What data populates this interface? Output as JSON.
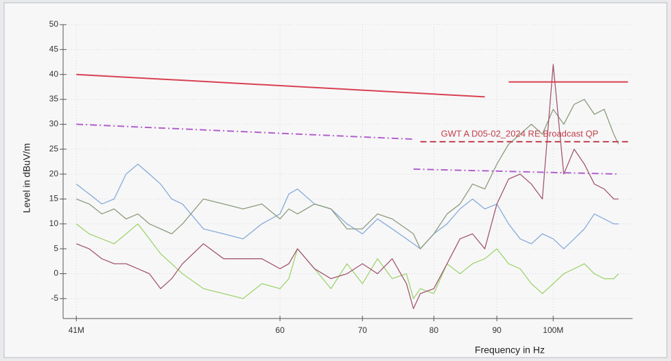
{
  "chart_data": {
    "type": "line",
    "x_label": "Frequency in Hz",
    "y_label": "Level in dBuV/m",
    "log_x": true,
    "grid": true,
    "xlim": [
      40000000,
      116000000
    ],
    "ylim": [
      -9,
      50
    ],
    "yticks": [
      -5,
      0,
      5,
      10,
      15,
      20,
      25,
      30,
      35,
      40,
      45,
      50
    ],
    "xticks": [
      {
        "value": 41000000,
        "label": "41M"
      },
      {
        "value": 60000000,
        "label": "60"
      },
      {
        "value": 70000000,
        "label": "70"
      },
      {
        "value": 80000000,
        "label": "80"
      },
      {
        "value": 90000000,
        "label": "90"
      },
      {
        "value": 100000000,
        "label": "100M"
      }
    ],
    "x": [
      41000000,
      42000000,
      43000000,
      44000000,
      45000000,
      46000000,
      47000000,
      48000000,
      49000000,
      50000000,
      52000000,
      54000000,
      56000000,
      58000000,
      60000000,
      61000000,
      62000000,
      64000000,
      66000000,
      68000000,
      70000000,
      72000000,
      74000000,
      76000000,
      77000000,
      78000000,
      80000000,
      82000000,
      84000000,
      86000000,
      88000000,
      90000000,
      92000000,
      94000000,
      96000000,
      98000000,
      100000000,
      102000000,
      104000000,
      106000000,
      108000000,
      110000000,
      112000000,
      113000000
    ],
    "series": [
      {
        "color": "#86aad8",
        "values": [
          18,
          16,
          14,
          15,
          20,
          22,
          20,
          18,
          15,
          14,
          9,
          8,
          7,
          10,
          12,
          16,
          17,
          14,
          13,
          10,
          8,
          11,
          9,
          7,
          6,
          5,
          8,
          10,
          13,
          15,
          13,
          14,
          10,
          7,
          6,
          8,
          7,
          5,
          7,
          9,
          12,
          11,
          10,
          10
        ]
      },
      {
        "color": "#8a9a7a",
        "values": [
          15,
          14,
          12,
          13,
          11,
          12,
          10,
          9,
          8,
          10,
          15,
          14,
          13,
          14,
          11,
          13,
          12,
          14,
          13,
          9,
          9,
          12,
          11,
          9,
          8,
          5,
          8,
          12,
          14,
          18,
          17,
          22,
          26,
          28,
          30,
          28,
          33,
          30,
          34,
          35,
          32,
          33,
          28,
          26
        ]
      },
      {
        "color": "#9fd46c",
        "values": [
          10,
          8,
          7,
          6,
          8,
          10,
          7,
          4,
          2,
          0,
          -3,
          -4,
          -5,
          -2,
          -3,
          -1,
          5,
          1,
          -3,
          2,
          -2,
          3,
          -1,
          0,
          -5,
          -3,
          -4,
          2,
          0,
          2,
          3,
          5,
          2,
          1,
          -2,
          -4,
          -2,
          0,
          1,
          2,
          0,
          -1,
          -1,
          0
        ]
      },
      {
        "color": "#a2566f",
        "values": [
          6,
          5,
          3,
          2,
          2,
          1,
          0,
          -3,
          -1,
          2,
          6,
          3,
          3,
          3,
          1,
          2,
          5,
          1,
          -1,
          0,
          2,
          0,
          3,
          -2,
          -7,
          -4,
          -3,
          2,
          7,
          8,
          5,
          14,
          19,
          20,
          18,
          15,
          42,
          20,
          25,
          22,
          18,
          17,
          15,
          15
        ]
      }
    ],
    "limits": [
      {
        "color": "#d8404f",
        "style": "solid",
        "x": [
          41000000,
          88000000
        ],
        "values": [
          40,
          35.5
        ]
      },
      {
        "color": "#d8404f",
        "style": "solid",
        "x": [
          92000000,
          115000000
        ],
        "values": [
          38.5,
          38.5
        ]
      },
      {
        "color": "#b25fcc",
        "style": "dashdot",
        "x": [
          41000000,
          77000000
        ],
        "values": [
          30,
          27
        ]
      },
      {
        "color": "#b25fcc",
        "style": "dashdot",
        "x": [
          77000000,
          113000000
        ],
        "values": [
          21,
          20
        ]
      },
      {
        "color": "#c0404a",
        "style": "dashed",
        "name": "GWT A D05-02_2024 RE Broadcast QP",
        "x": [
          78000000,
          115000000
        ],
        "values": [
          26.5,
          26.5
        ]
      }
    ]
  }
}
